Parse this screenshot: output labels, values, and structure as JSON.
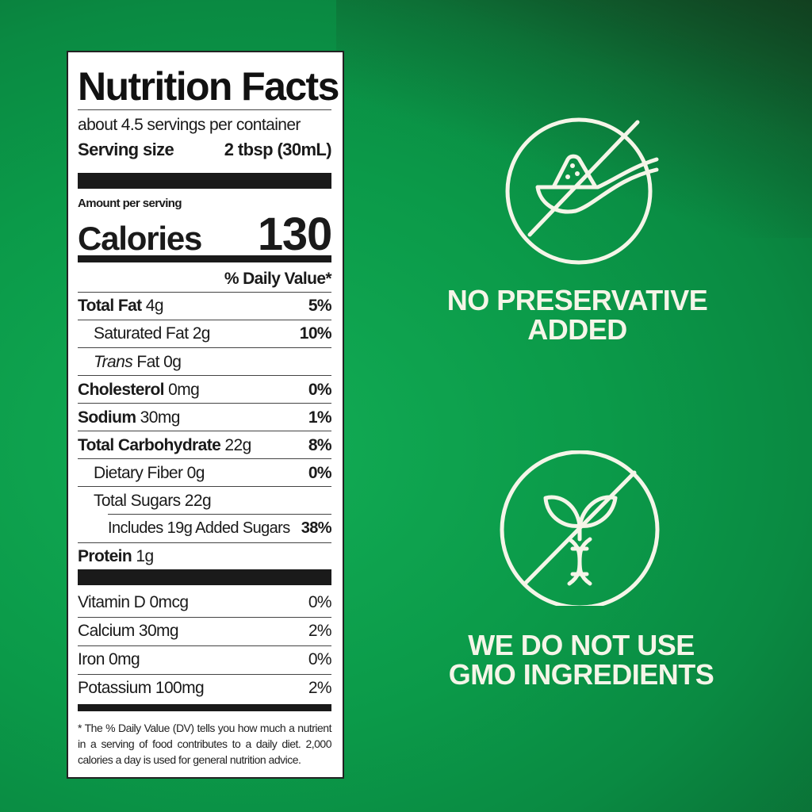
{
  "label": {
    "title": "Nutrition Facts",
    "servings": "about 4.5 servings per container",
    "serving_size_label": "Serving size",
    "serving_size_value": "2 tbsp (30mL)",
    "amount_per_serving": "Amount per serving",
    "calories_label": "Calories",
    "calories_value": "130",
    "dv_header": "% Daily Value*",
    "nutrients": [
      {
        "name": "Total Fat",
        "amount": "4g",
        "dv": "5%"
      },
      {
        "name": "Saturated Fat",
        "amount": "2g",
        "dv": "10%"
      },
      {
        "name": "Trans",
        "amount": "Fat 0g",
        "dv": ""
      },
      {
        "name": "Cholesterol",
        "amount": "0mg",
        "dv": "0%"
      },
      {
        "name": "Sodium",
        "amount": "30mg",
        "dv": "1%"
      },
      {
        "name": "Total Carbohydrate",
        "amount": "22g",
        "dv": "8%"
      },
      {
        "name": "Dietary Fiber",
        "amount": "0g",
        "dv": "0%"
      },
      {
        "name": "Total Sugars",
        "amount": "22g",
        "dv": ""
      },
      {
        "name": "Includes 19g Added Sugars",
        "amount": "",
        "dv": "38%"
      },
      {
        "name": "Protein",
        "amount": "1g",
        "dv": ""
      }
    ],
    "vitamins": [
      {
        "name": "Vitamin D 0mcg",
        "dv": "0%"
      },
      {
        "name": "Calcium 30mg",
        "dv": "2%"
      },
      {
        "name": "Iron 0mg",
        "dv": "0%"
      },
      {
        "name": "Potassium 100mg",
        "dv": "2%"
      }
    ],
    "footnote": "* The % Daily Value (DV) tells you how much a nutrient in a serving of food contributes to a daily diet. 2,000 calories a day is used for general nutrition advice."
  },
  "claims": [
    {
      "icon": "no-preservative-icon",
      "text": "NO PRESERVATIVE ADDED"
    },
    {
      "icon": "no-gmo-icon",
      "text": "WE DO NOT USE GMO INGREDIENTS"
    }
  ],
  "colors": {
    "background": "#0b9a49",
    "icon": "#f5f5e8"
  }
}
